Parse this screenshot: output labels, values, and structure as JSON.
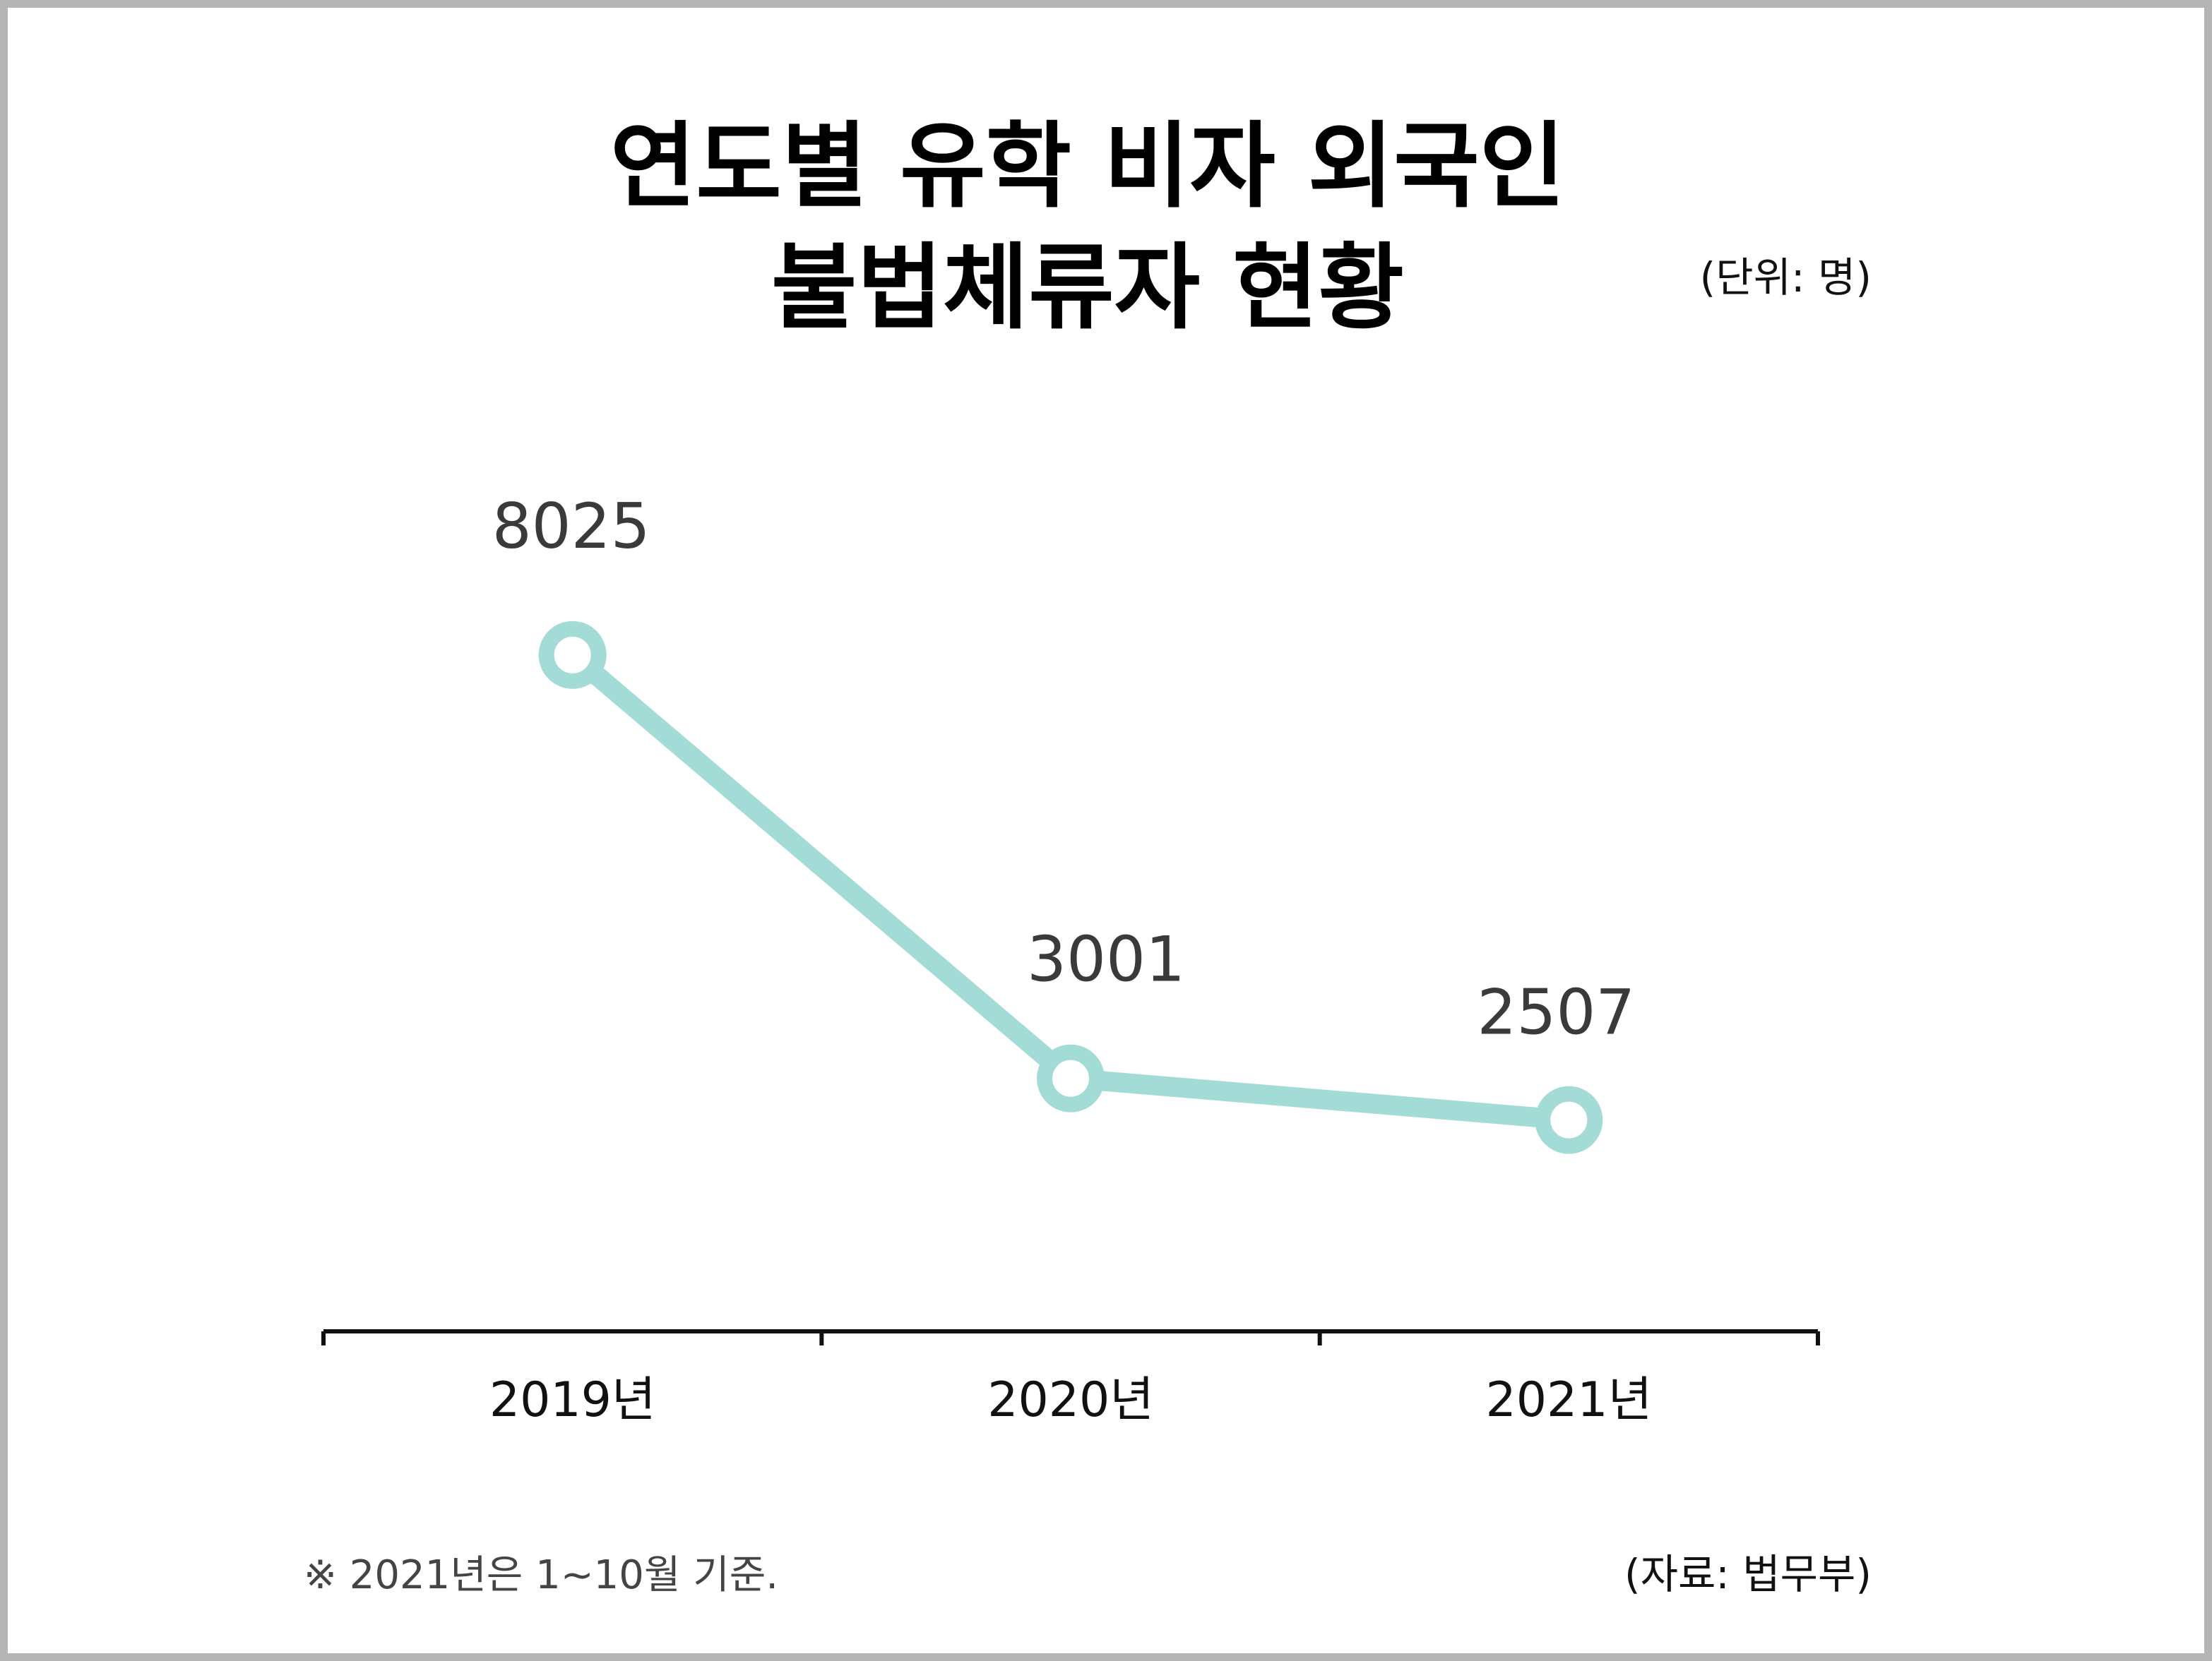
{
  "chart_data": {
    "type": "line",
    "title_lines": [
      "연도별 유학 비자 외국인",
      "불법체류자 현황"
    ],
    "unit_label": "(단위: 명)",
    "categories": [
      "2019년",
      "2020년",
      "2021년"
    ],
    "values": [
      8025,
      3001,
      2507
    ],
    "ylim": [
      0,
      10000
    ],
    "grid": false,
    "y_axis_visible": false,
    "data_labels_visible": true,
    "footnote": "※ 2021년은 1~10월 기준.",
    "source": "(자료: 법무부)",
    "line_color": "#a3dbd6",
    "marker_fill": "#ffffff",
    "axis_color": "#111111"
  }
}
